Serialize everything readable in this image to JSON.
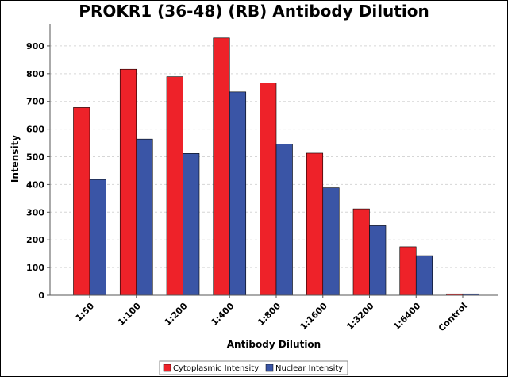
{
  "chart_data": {
    "type": "bar",
    "title": "PROKR1 (36-48) (RB) Antibody Dilution",
    "xlabel": "Antibody Dilution",
    "ylabel": "Intensity",
    "ylim": [
      0,
      980
    ],
    "yticks": [
      0,
      100,
      200,
      300,
      400,
      500,
      600,
      700,
      800,
      900
    ],
    "grid": true,
    "legend_position": "bottom-center",
    "categories": [
      "1:50",
      "1:100",
      "1:200",
      "1:400",
      "1:800",
      "1:1600",
      "1:3200",
      "1:6400",
      "Control"
    ],
    "series": [
      {
        "name": "Cytoplasmic Intensity",
        "color": "#ee2229",
        "values": [
          678,
          816,
          789,
          929,
          767,
          513,
          312,
          175,
          5
        ]
      },
      {
        "name": "Nuclear Intensity",
        "color": "#3a55a6",
        "values": [
          418,
          564,
          512,
          734,
          546,
          388,
          251,
          143,
          5
        ]
      }
    ]
  }
}
